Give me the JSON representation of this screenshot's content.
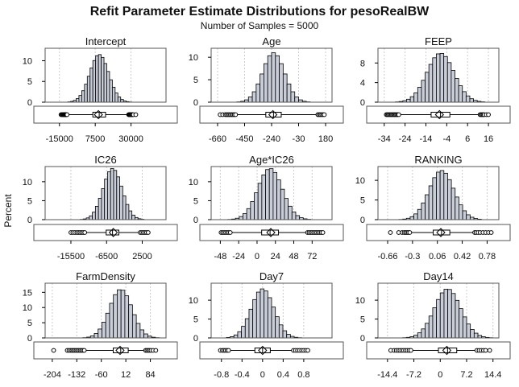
{
  "title": "Refit Parameter Estimate Distributions for pesoRealBW",
  "subtitle": "Number of Samples = 5000",
  "ylabel": "Percent",
  "colors": {
    "bar_fill": "#c8cdd8",
    "bar_stroke": "#000000",
    "grid": "#cccccc",
    "frame": "#555555"
  },
  "chart_data": [
    {
      "type": "bar",
      "name": "Intercept",
      "xlim": [
        -24000,
        52000
      ],
      "xticks": [
        -15000,
        7500,
        30000
      ],
      "xtick_labels": [
        "-15000",
        "7500",
        "30000"
      ],
      "yticks": [
        0,
        5,
        10
      ],
      "ytick_labels": [
        "0",
        "5",
        "10"
      ],
      "ylim": [
        0,
        13
      ],
      "hist_range": [
        -15000,
        34000
      ],
      "mean": 10000,
      "sd": 6000,
      "peak": 11.5,
      "box": {
        "q1": 6000,
        "median": 10000,
        "q3": 14000,
        "mean": 9500
      },
      "outliers_low": [
        -14000,
        -13500,
        -13000,
        -12600,
        -12300,
        -12000,
        -11700,
        -11400,
        -11100,
        -10800,
        -10500,
        -10200
      ],
      "outliers_high": [
        28500,
        28800,
        29100,
        29400,
        29800,
        30200,
        30600,
        31000,
        31500,
        33000
      ]
    },
    {
      "type": "bar",
      "name": "Age",
      "xlim": [
        -710,
        230
      ],
      "xticks": [
        -660,
        -450,
        -240,
        -30,
        180
      ],
      "xtick_labels": [
        "-660",
        "-450",
        "-240",
        "-30",
        "180"
      ],
      "yticks": [
        0,
        5,
        10
      ],
      "ytick_labels": [
        "0",
        "5",
        "10"
      ],
      "ylim": [
        0,
        12
      ],
      "hist_range": [
        -660,
        180
      ],
      "mean": -225,
      "sd": 85,
      "peak": 11,
      "box": {
        "q1": -285,
        "median": -225,
        "q3": -165,
        "mean": -230
      },
      "outliers_low": [
        -640,
        -620,
        -600,
        -590,
        -580,
        -570,
        -560,
        -550,
        -540,
        -530,
        -520
      ],
      "outliers_high": [
        120,
        130,
        140,
        150,
        160,
        170
      ]
    },
    {
      "type": "bar",
      "name": "FEEP",
      "xlim": [
        -37,
        21
      ],
      "xticks": [
        -34,
        -24,
        -14,
        -4,
        6,
        16
      ],
      "xtick_labels": [
        "-34",
        "-24",
        "-14",
        "-4",
        "6",
        "16"
      ],
      "yticks": [
        0,
        4,
        8
      ],
      "ytick_labels": [
        "0",
        "4",
        "8"
      ],
      "ylim": [
        0,
        11
      ],
      "hist_range": [
        -34,
        16
      ],
      "mean": -7,
      "sd": 6.5,
      "peak": 10,
      "box": {
        "q1": -11.5,
        "median": -7,
        "q3": -2.5,
        "mean": -7.5
      },
      "outliers_low": [
        -33,
        -32.5,
        -32,
        -31.5,
        -31,
        -30.5,
        -30,
        -29.5,
        -29,
        -28.5,
        -28,
        -27.5,
        -27
      ],
      "outliers_high": [
        12,
        12.5,
        13,
        13.5,
        14,
        15,
        16
      ]
    },
    {
      "type": "bar",
      "name": "IC26",
      "xlim": [
        -22000,
        8500
      ],
      "xticks": [
        -15500,
        -6500,
        2500
      ],
      "xtick_labels": [
        "-15500",
        "-6500",
        "2500"
      ],
      "yticks": [
        0,
        5,
        10
      ],
      "ytick_labels": [
        "0",
        "5",
        "10"
      ],
      "ylim": [
        0,
        14
      ],
      "hist_range": [
        -17000,
        4500
      ],
      "mean": -5000,
      "sd": 2400,
      "peak": 13.5,
      "box": {
        "q1": -6600,
        "median": -5000,
        "q3": -3400,
        "mean": -4800
      },
      "outliers_low": [
        -15500,
        -15000,
        -14500,
        -14000,
        -13600,
        -13200,
        -12800,
        -12400,
        -12000
      ],
      "outliers_high": [
        2000,
        2400,
        2800,
        3200,
        3600,
        4000
      ]
    },
    {
      "type": "bar",
      "name": "Age*IC26",
      "xlim": [
        -60,
        98
      ],
      "xticks": [
        -48,
        -24,
        0,
        24,
        48,
        72
      ],
      "xtick_labels": [
        "-48",
        "-24",
        "0",
        "24",
        "48",
        "72"
      ],
      "yticks": [
        0,
        5,
        10
      ],
      "ytick_labels": [
        "0",
        "5",
        "10"
      ],
      "ylim": [
        0,
        14
      ],
      "hist_range": [
        -48,
        90
      ],
      "mean": 17,
      "sd": 16,
      "peak": 13.5,
      "box": {
        "q1": 6,
        "median": 17,
        "q3": 28,
        "mean": 18
      },
      "outliers_low": [
        -47,
        -45,
        -43,
        -41,
        -39,
        -37,
        -35
      ],
      "outliers_high": [
        66,
        68,
        70,
        72,
        74,
        76,
        78,
        80,
        82,
        84,
        86
      ]
    },
    {
      "type": "bar",
      "name": "RANKING",
      "xlim": [
        -0.8,
        0.95
      ],
      "xticks": [
        -0.66,
        -0.3,
        0.06,
        0.42,
        0.78
      ],
      "xtick_labels": [
        "-0.66",
        "-0.3",
        "0.06",
        "0.42",
        "0.78"
      ],
      "yticks": [
        0,
        5,
        10
      ],
      "ytick_labels": [
        "0",
        "5",
        "10"
      ],
      "ylim": [
        0,
        13.5
      ],
      "hist_range": [
        -0.66,
        0.86
      ],
      "mean": 0.12,
      "sd": 0.18,
      "peak": 12.5,
      "box": {
        "q1": 0.0,
        "median": 0.12,
        "q3": 0.24,
        "mean": 0.11
      },
      "outliers_low": [
        -0.62,
        -0.5,
        -0.45,
        -0.42,
        -0.4,
        -0.38,
        -0.36,
        -0.34
      ],
      "outliers_high": [
        0.6,
        0.62,
        0.65,
        0.68,
        0.72,
        0.76,
        0.8,
        0.84
      ]
    },
    {
      "type": "bar",
      "name": "FarmDensity",
      "xlim": [
        -225,
        130
      ],
      "xticks": [
        -204,
        -132,
        -60,
        12,
        84
      ],
      "xtick_labels": [
        "-204",
        "-132",
        "-60",
        "12",
        "84"
      ],
      "yticks": [
        0,
        5,
        10,
        15
      ],
      "ytick_labels": [
        "0",
        "5",
        "10",
        "15"
      ],
      "ylim": [
        0,
        18
      ],
      "hist_range": [
        -204,
        110
      ],
      "mean": -3,
      "sd": 33,
      "peak": 16,
      "box": {
        "q1": -25,
        "median": -3,
        "q3": 19,
        "mean": -5
      },
      "outliers_low": [
        -200,
        -160,
        -155,
        -150,
        -146,
        -142,
        -138,
        -134,
        -130,
        -126,
        -122,
        -118,
        -114,
        -110
      ],
      "outliers_high": [
        70,
        74,
        78,
        82,
        86,
        92,
        100
      ]
    },
    {
      "type": "bar",
      "name": "Day7",
      "xlim": [
        -1.0,
        1.35
      ],
      "xticks": [
        -0.8,
        -0.4,
        0,
        0.4,
        0.8
      ],
      "xtick_labels": [
        "-0.8",
        "-0.4",
        "0",
        "0.4",
        "0.8"
      ],
      "yticks": [
        0,
        5,
        10
      ],
      "ytick_labels": [
        "0",
        "5",
        "10"
      ],
      "ylim": [
        0,
        14.5
      ],
      "hist_range": [
        -0.85,
        1.2
      ],
      "mean": 0.0,
      "sd": 0.22,
      "peak": 13,
      "box": {
        "q1": -0.15,
        "median": 0.0,
        "q3": 0.15,
        "mean": 0.0
      },
      "outliers_low": [
        -0.82,
        -0.78,
        -0.75,
        -0.72,
        -0.69,
        -0.66
      ],
      "outliers_high": [
        0.6,
        0.64,
        0.68,
        0.72,
        0.76,
        0.8,
        0.84,
        0.88
      ]
    },
    {
      "type": "bar",
      "name": "Day14",
      "xlim": [
        -17,
        16
      ],
      "xticks": [
        -14.4,
        -7.2,
        0,
        7.2,
        14.4
      ],
      "xtick_labels": [
        "-14.4",
        "-7.2",
        "0",
        "7.2",
        "14.4"
      ],
      "yticks": [
        0,
        5,
        10
      ],
      "ytick_labels": [
        "0",
        "5",
        "10"
      ],
      "ylim": [
        0,
        14.5
      ],
      "hist_range": [
        -14.4,
        14.4
      ],
      "mean": 2,
      "sd": 3.6,
      "peak": 13,
      "box": {
        "q1": -0.5,
        "median": 2,
        "q3": 4.5,
        "mean": 1.8
      },
      "outliers_low": [
        -13.5,
        -12.6,
        -12,
        -11.5,
        -11,
        -10.5,
        -10,
        -9.5,
        -9,
        -8.5,
        -8
      ],
      "outliers_high": [
        10,
        10.6,
        11.2,
        11.8,
        12.4,
        13.5
      ]
    }
  ]
}
